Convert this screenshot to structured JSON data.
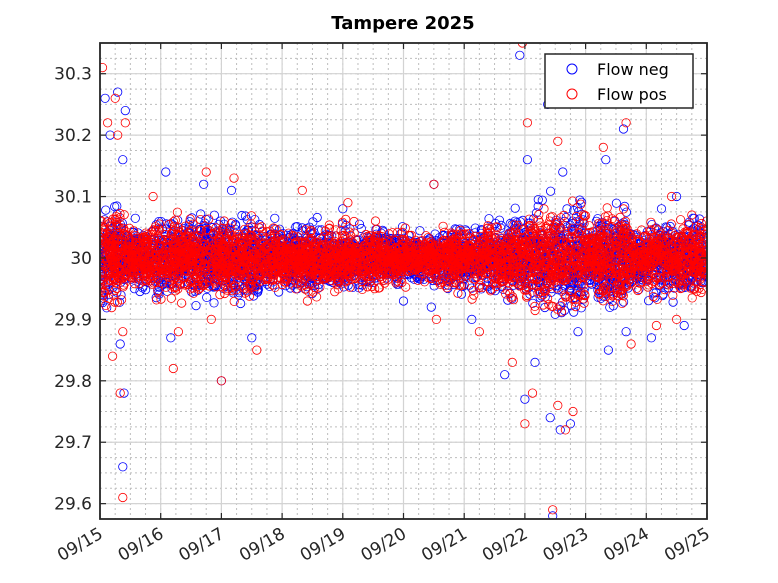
{
  "chart_data": {
    "type": "scatter",
    "title": "Tampere 2025",
    "xlabel": "",
    "ylabel": "",
    "x_ticks": [
      "09/15",
      "09/16",
      "09/17",
      "09/18",
      "09/19",
      "09/20",
      "09/21",
      "09/22",
      "09/23",
      "09/24",
      "09/25"
    ],
    "x_range": [
      "2025-09-15",
      "2025-09-25"
    ],
    "y_ticks": [
      29.6,
      29.7,
      29.8,
      29.9,
      30,
      30.1,
      30.2,
      30.3
    ],
    "y_tick_labels": [
      "29.6",
      "29.7",
      "29.8",
      "29.9",
      "30",
      "30.1",
      "30.2",
      "30.3"
    ],
    "ylim": [
      29.575,
      30.35
    ],
    "grid": true,
    "minor_grid": true,
    "legend": {
      "position": "top-right"
    },
    "series": [
      {
        "name": "Flow neg",
        "color": "#0000ff",
        "marker": "open-circle",
        "center": 30.0,
        "outliers": [
          [
            "2025-09-15T02:00",
            30.26
          ],
          [
            "2025-09-15T04:00",
            30.2
          ],
          [
            "2025-09-15T07:00",
            30.27
          ],
          [
            "2025-09-15T10:00",
            30.24
          ],
          [
            "2025-09-15T09:00",
            30.16
          ],
          [
            "2025-09-15T08:00",
            29.86
          ],
          [
            "2025-09-15T09:30",
            29.78
          ],
          [
            "2025-09-15T09:00",
            29.66
          ],
          [
            "2025-09-16T02:00",
            30.14
          ],
          [
            "2025-09-16T04:00",
            29.87
          ],
          [
            "2025-09-16T17:00",
            30.12
          ],
          [
            "2025-09-17T00:00",
            29.8
          ],
          [
            "2025-09-17T04:00",
            30.11
          ],
          [
            "2025-09-17T12:00",
            29.87
          ],
          [
            "2025-09-18T06:00",
            29.95
          ],
          [
            "2025-09-19T00:00",
            30.08
          ],
          [
            "2025-09-20T00:00",
            29.93
          ],
          [
            "2025-09-20T12:00",
            30.12
          ],
          [
            "2025-09-20T11:00",
            29.92
          ],
          [
            "2025-09-21T03:00",
            29.9
          ],
          [
            "2025-09-21T16:00",
            29.81
          ],
          [
            "2025-09-21T22:00",
            30.33
          ],
          [
            "2025-09-22T00:00",
            29.77
          ],
          [
            "2025-09-22T01:00",
            30.16
          ],
          [
            "2025-09-22T04:00",
            29.83
          ],
          [
            "2025-09-22T09:00",
            30.25
          ],
          [
            "2025-09-22T10:00",
            29.74
          ],
          [
            "2025-09-22T11:00",
            29.58
          ],
          [
            "2025-09-22T14:00",
            29.72
          ],
          [
            "2025-09-22T15:00",
            30.14
          ],
          [
            "2025-09-22T18:00",
            29.73
          ],
          [
            "2025-09-22T21:00",
            29.88
          ],
          [
            "2025-09-23T08:00",
            30.16
          ],
          [
            "2025-09-23T09:00",
            29.85
          ],
          [
            "2025-09-23T15:00",
            30.21
          ],
          [
            "2025-09-23T16:00",
            29.88
          ],
          [
            "2025-09-24T02:00",
            29.87
          ],
          [
            "2025-09-24T06:00",
            30.08
          ],
          [
            "2025-09-24T12:00",
            30.1
          ],
          [
            "2025-09-24T15:00",
            29.89
          ],
          [
            "2025-09-24T22:00",
            29.96
          ]
        ]
      },
      {
        "name": "Flow pos",
        "color": "#ff0000",
        "marker": "open-circle",
        "center": 30.0,
        "outliers": [
          [
            "2025-09-15T01:00",
            30.31
          ],
          [
            "2025-09-15T03:00",
            30.22
          ],
          [
            "2025-09-15T06:00",
            30.26
          ],
          [
            "2025-09-15T07:00",
            30.2
          ],
          [
            "2025-09-15T10:00",
            30.22
          ],
          [
            "2025-09-15T05:00",
            29.84
          ],
          [
            "2025-09-15T09:00",
            29.88
          ],
          [
            "2025-09-15T08:00",
            29.78
          ],
          [
            "2025-09-15T09:00",
            29.61
          ],
          [
            "2025-09-15T21:00",
            30.1
          ],
          [
            "2025-09-16T05:00",
            29.82
          ],
          [
            "2025-09-16T07:00",
            29.88
          ],
          [
            "2025-09-16T18:00",
            30.14
          ],
          [
            "2025-09-16T20:00",
            29.9
          ],
          [
            "2025-09-17T05:00",
            30.13
          ],
          [
            "2025-09-17T00:00",
            29.8
          ],
          [
            "2025-09-17T14:00",
            29.85
          ],
          [
            "2025-09-18T08:00",
            30.11
          ],
          [
            "2025-09-18T10:00",
            29.93
          ],
          [
            "2025-09-19T02:00",
            30.09
          ],
          [
            "2025-09-20T12:00",
            30.12
          ],
          [
            "2025-09-20T13:00",
            29.9
          ],
          [
            "2025-09-21T06:00",
            29.88
          ],
          [
            "2025-09-21T19:00",
            29.83
          ],
          [
            "2025-09-21T23:00",
            30.35
          ],
          [
            "2025-09-22T01:00",
            30.22
          ],
          [
            "2025-09-22T00:00",
            29.73
          ],
          [
            "2025-09-22T03:00",
            29.78
          ],
          [
            "2025-09-22T10:00",
            30.26
          ],
          [
            "2025-09-22T11:00",
            29.59
          ],
          [
            "2025-09-22T13:00",
            29.76
          ],
          [
            "2025-09-22T16:00",
            29.72
          ],
          [
            "2025-09-22T19:00",
            29.75
          ],
          [
            "2025-09-22T13:00",
            30.19
          ],
          [
            "2025-09-23T07:00",
            30.18
          ],
          [
            "2025-09-23T16:00",
            30.22
          ],
          [
            "2025-09-23T18:00",
            29.86
          ],
          [
            "2025-09-24T04:00",
            29.89
          ],
          [
            "2025-09-24T10:00",
            30.1
          ],
          [
            "2025-09-24T18:00",
            30.07
          ],
          [
            "2025-09-24T12:00",
            29.9
          ]
        ]
      }
    ]
  }
}
